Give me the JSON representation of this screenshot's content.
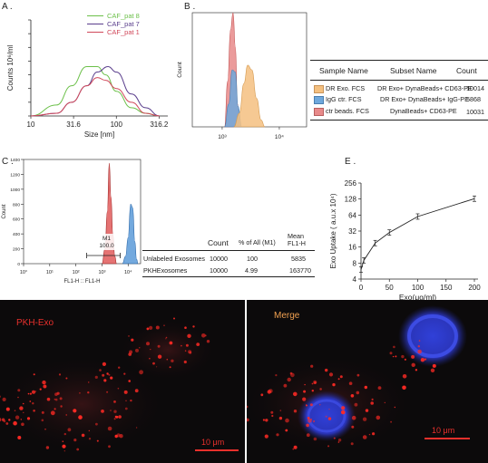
{
  "panels": {
    "A": {
      "letter": "A .",
      "xlabel": "Size  [nm]",
      "ylabel": "Counts 10⁶/ml",
      "legend": [
        {
          "name": "CAF_pat 8",
          "color": "#6cc04a"
        },
        {
          "name": "CAF_pat 7",
          "color": "#5a3e8c"
        },
        {
          "name": "CAF_pat 1",
          "color": "#d0485a"
        }
      ]
    },
    "B": {
      "letter": "B .",
      "ylabel": "Count",
      "table": {
        "headers": [
          "Sample Name",
          "Subset Name",
          "Count"
        ],
        "rows": [
          {
            "sample": "DR Exo. FCS",
            "subset": "DR Exo+ DynaBeads+ CD63-PE",
            "count": "10014",
            "color": "#f4c080"
          },
          {
            "sample": "IgG ctr. FCS",
            "subset": "DR Exo+ DynaBeads+ IgG-PE",
            "count": "5868",
            "color": "#6fa8dc"
          },
          {
            "sample": "ctr beads. FCS",
            "subset": "DynaBeads+ CD63-PE",
            "count": "10031",
            "color": "#e88a8a"
          }
        ]
      }
    },
    "C": {
      "letter": "C .",
      "ylabel": "Count",
      "xlabel": "FL1-H :: FL1-H",
      "marker_label": "M1",
      "marker_value": "100.0",
      "table": {
        "headers": [
          "",
          "Count",
          "% of All (M1)",
          "Mean FL1-H"
        ],
        "rows": [
          {
            "name": "Unlabeled Exosomes",
            "count": "10000",
            "pct": "100",
            "mean": "5835"
          },
          {
            "name": "PKHExosomes",
            "count": "10000",
            "pct": "4.99",
            "mean": "163770"
          }
        ]
      }
    },
    "D": {
      "letter": "D .",
      "left_label": "PKH-Exo",
      "right_label": "Merge",
      "scalebar_left": "10 μm",
      "scalebar_right": "10 μm"
    },
    "E": {
      "letter": "E .",
      "ylabel": "Exo Uptake  ( a.u.x 10⁴)",
      "xlabel": "Exo(μg/ml)"
    }
  },
  "chart_data": [
    {
      "type": "line",
      "panel": "A",
      "xscale": "log",
      "x_ticks": [
        "10",
        "31.6",
        "100",
        "316.2"
      ],
      "y_ticks": [
        "0",
        "5",
        "10",
        "15",
        "20",
        "25",
        "30",
        "35"
      ],
      "xlim": [
        10,
        400
      ],
      "ylim": [
        0,
        35
      ],
      "series": [
        {
          "name": "CAF_pat 8",
          "x": [
            10,
            20,
            30,
            45,
            60,
            75,
            100,
            150,
            220,
            320
          ],
          "y": [
            0,
            4,
            11,
            18,
            18,
            15,
            9,
            3,
            1,
            0
          ]
        },
        {
          "name": "CAF_pat 7",
          "x": [
            10,
            20,
            30,
            45,
            60,
            80,
            100,
            150,
            220,
            320
          ],
          "y": [
            0,
            1,
            5,
            11,
            16,
            18,
            16,
            8,
            3,
            0
          ]
        },
        {
          "name": "CAF_pat 1",
          "x": [
            10,
            20,
            30,
            45,
            60,
            75,
            100,
            150,
            220,
            320
          ],
          "y": [
            0,
            1,
            5,
            11,
            14,
            13,
            10,
            5,
            1,
            0
          ]
        }
      ]
    },
    {
      "type": "area",
      "panel": "B",
      "xscale": "log",
      "x_ticks": [
        "10³",
        "10⁴"
      ],
      "xlim": [
        300,
        30000
      ],
      "ylim": [
        0,
        100
      ],
      "series": [
        {
          "name": "ctr beads. FCS",
          "x": [
            1100,
            1250,
            1400,
            1550,
            1700,
            1850,
            2050
          ],
          "y": [
            0,
            40,
            85,
            100,
            70,
            20,
            0
          ]
        },
        {
          "name": "IgG ctr. FCS",
          "x": [
            1100,
            1300,
            1500,
            1700,
            1900,
            2200
          ],
          "y": [
            0,
            20,
            50,
            48,
            18,
            0
          ]
        },
        {
          "name": "DR Exo. FCS",
          "x": [
            1600,
            2000,
            2400,
            2800,
            3300,
            4000,
            4800,
            5600
          ],
          "y": [
            0,
            12,
            38,
            54,
            50,
            25,
            6,
            0
          ]
        }
      ]
    },
    {
      "type": "area",
      "panel": "C",
      "xscale": "log",
      "x_ticks": [
        "10°",
        "10¹",
        "10²",
        "10³",
        "10⁴"
      ],
      "y_ticks": [
        "0",
        "200",
        "400",
        "600",
        "800",
        "1000",
        "1200",
        "1400"
      ],
      "xlim": [
        1,
        30000
      ],
      "ylim": [
        0,
        1400
      ],
      "series": [
        {
          "name": "Unlabeled Exosomes",
          "x": [
            1000,
            1300,
            1600,
            1900,
            2200,
            2600,
            3100,
            3600
          ],
          "y": [
            0,
            200,
            700,
            1350,
            900,
            400,
            100,
            0
          ]
        },
        {
          "name": "PKHExosomes",
          "x": [
            6000,
            8000,
            10000,
            12500,
            15000,
            18000,
            21000,
            24000
          ],
          "y": [
            0,
            100,
            350,
            800,
            750,
            300,
            60,
            0
          ]
        }
      ]
    },
    {
      "type": "line",
      "panel": "E",
      "y_ticks": [
        "4",
        "8",
        "16",
        "32",
        "64",
        "128",
        "256"
      ],
      "x_ticks": [
        "0",
        "50",
        "100",
        "150",
        "200"
      ],
      "xlim": [
        0,
        200
      ],
      "ylim": [
        4,
        256
      ],
      "yscale": "log2",
      "series": [
        {
          "x": [
            0,
            5,
            25,
            50,
            100,
            200
          ],
          "y": [
            6,
            9,
            19,
            30,
            60,
            130
          ]
        }
      ]
    }
  ]
}
